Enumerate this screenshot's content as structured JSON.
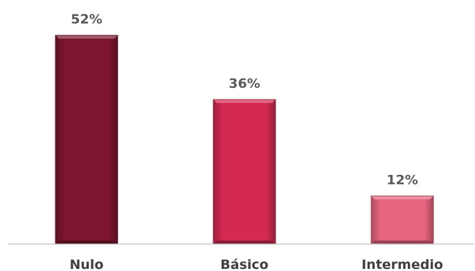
{
  "chart_data": {
    "type": "bar",
    "categories": [
      "Nulo",
      "Básico",
      "Intermedio"
    ],
    "values": [
      52,
      36,
      12
    ],
    "value_labels": [
      "52%",
      "36%",
      "12%"
    ],
    "colors": [
      "#7d1530",
      "#d42a52",
      "#e8657f"
    ],
    "title": "",
    "xlabel": "",
    "ylabel": "",
    "ylim": [
      0,
      52
    ],
    "grid": false,
    "legend": "none"
  }
}
